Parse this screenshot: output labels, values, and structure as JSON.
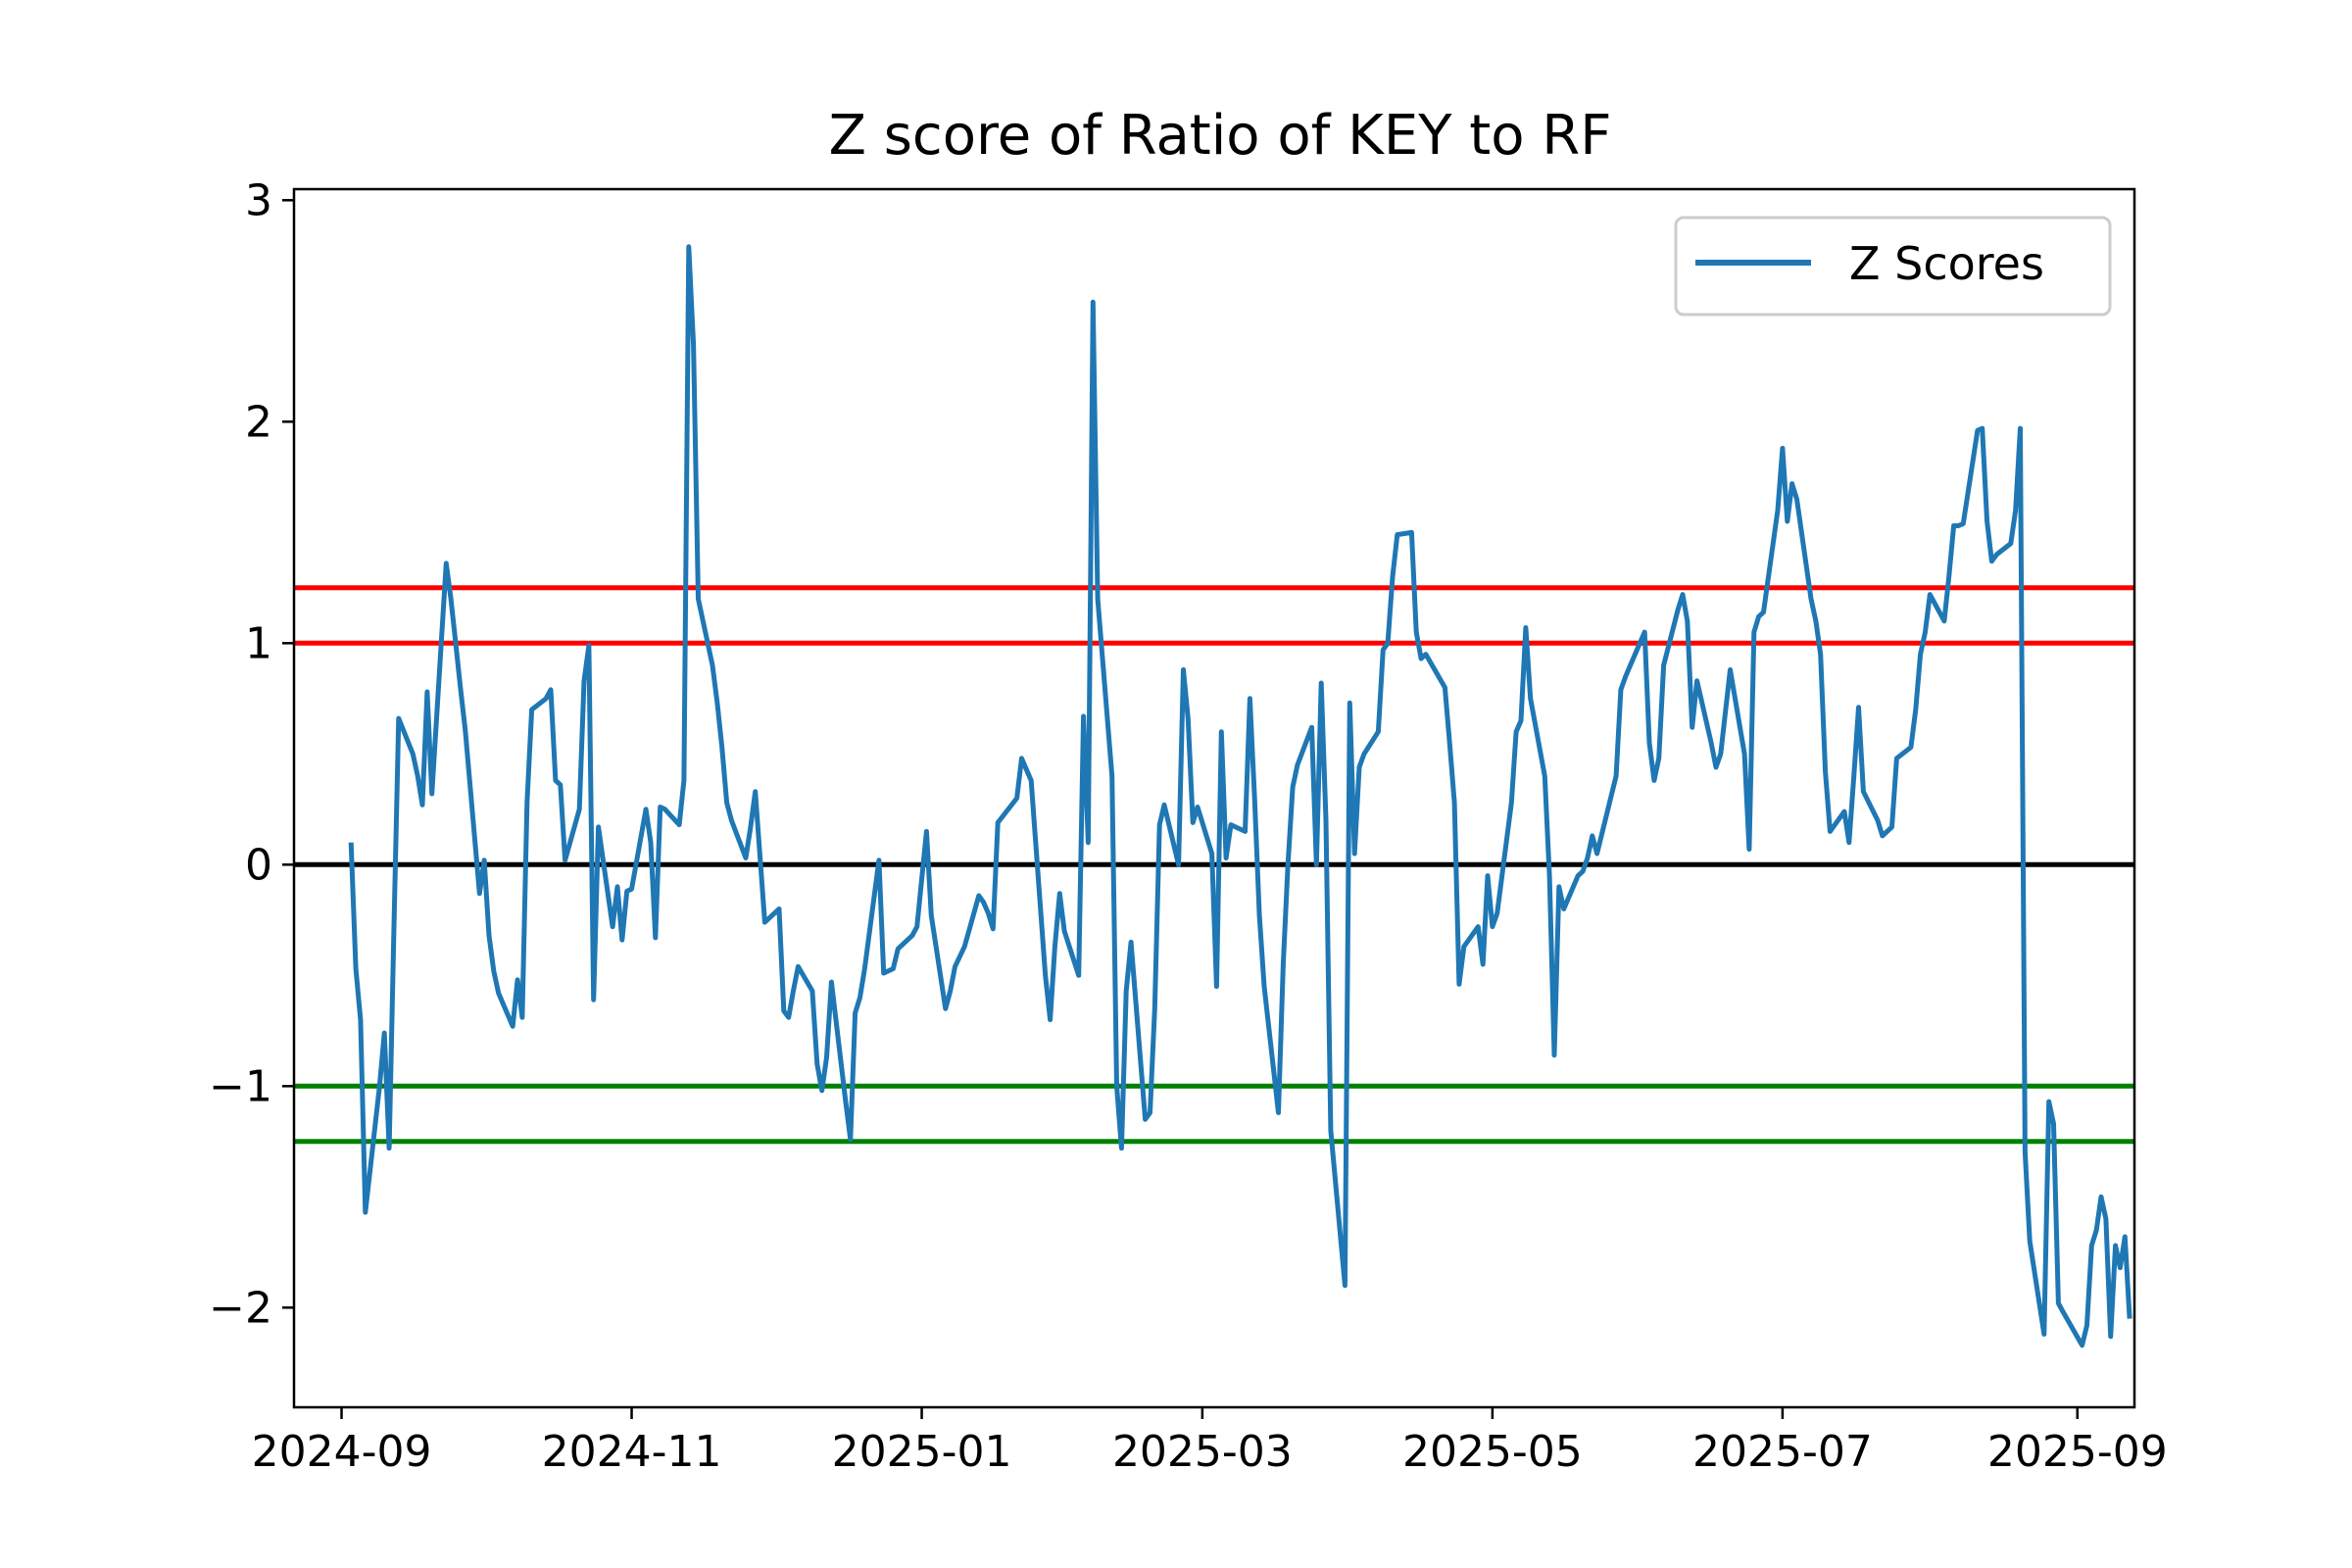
{
  "chart_data": {
    "type": "line",
    "title": "Z score of Ratio of KEY to RF",
    "xlabel": "",
    "ylabel": "",
    "xlim": [
      "2024-08-22",
      "2025-09-13"
    ],
    "ylim": [
      -2.45,
      3.05
    ],
    "x_ticks": [
      "2024-09-01",
      "2024-11-01",
      "2025-01-01",
      "2025-03-01",
      "2025-05-01",
      "2025-07-01",
      "2025-09-01"
    ],
    "x_tick_labels": [
      "2024-09",
      "2024-11",
      "2025-01",
      "2025-03",
      "2025-05",
      "2025-07",
      "2025-09"
    ],
    "y_ticks": [
      -2,
      -1,
      0,
      1,
      2,
      3
    ],
    "y_tick_labels": [
      "−2",
      "−1",
      "0",
      "1",
      "2",
      "3"
    ],
    "grid": false,
    "legend": {
      "position": "top-right",
      "entries": [
        "Z Scores"
      ]
    },
    "reference_lines": [
      {
        "y": 1.25,
        "color": "#ff0000"
      },
      {
        "y": 1.0,
        "color": "#ff0000"
      },
      {
        "y": 0,
        "color": "#000000"
      },
      {
        "y": -1.0,
        "color": "#008000"
      },
      {
        "y": -1.25,
        "color": "#008000"
      }
    ],
    "series": [
      {
        "name": "Z Scores",
        "color": "#1f77b4",
        "points": [
          [
            "2024-09-03",
            0.1
          ],
          [
            "2024-09-04",
            -0.47
          ],
          [
            "2024-09-05",
            -0.7
          ],
          [
            "2024-09-06",
            -1.57
          ],
          [
            "2024-09-09",
            -1.0
          ],
          [
            "2024-09-10",
            -0.76
          ],
          [
            "2024-09-11",
            -1.28
          ],
          [
            "2024-09-12",
            -0.3
          ],
          [
            "2024-09-13",
            0.66
          ],
          [
            "2024-09-16",
            0.5
          ],
          [
            "2024-09-17",
            0.4
          ],
          [
            "2024-09-18",
            0.27
          ],
          [
            "2024-09-19",
            0.78
          ],
          [
            "2024-09-20",
            0.32
          ],
          [
            "2024-09-23",
            1.36
          ],
          [
            "2024-09-24",
            1.2
          ],
          [
            "2024-09-25",
            1.0
          ],
          [
            "2024-09-26",
            0.8
          ],
          [
            "2024-09-27",
            0.61
          ],
          [
            "2024-09-30",
            -0.13
          ],
          [
            "2024-10-01",
            0.02
          ],
          [
            "2024-10-02",
            -0.32
          ],
          [
            "2024-10-03",
            -0.48
          ],
          [
            "2024-10-04",
            -0.58
          ],
          [
            "2024-10-07",
            -0.73
          ],
          [
            "2024-10-08",
            -0.52
          ],
          [
            "2024-10-09",
            -0.69
          ],
          [
            "2024-10-10",
            0.28
          ],
          [
            "2024-10-11",
            0.7
          ],
          [
            "2024-10-14",
            0.75
          ],
          [
            "2024-10-15",
            0.79
          ],
          [
            "2024-10-16",
            0.38
          ],
          [
            "2024-10-17",
            0.36
          ],
          [
            "2024-10-18",
            0.02
          ],
          [
            "2024-10-21",
            0.25
          ],
          [
            "2024-10-22",
            0.83
          ],
          [
            "2024-10-23",
            0.99
          ],
          [
            "2024-10-24",
            -0.61
          ],
          [
            "2024-10-25",
            0.17
          ],
          [
            "2024-10-28",
            -0.28
          ],
          [
            "2024-10-29",
            -0.1
          ],
          [
            "2024-10-30",
            -0.34
          ],
          [
            "2024-10-31",
            -0.12
          ],
          [
            "2024-11-01",
            -0.11
          ],
          [
            "2024-11-04",
            0.25
          ],
          [
            "2024-11-05",
            0.1
          ],
          [
            "2024-11-06",
            -0.33
          ],
          [
            "2024-11-07",
            0.26
          ],
          [
            "2024-11-08",
            0.25
          ],
          [
            "2024-11-11",
            0.18
          ],
          [
            "2024-11-12",
            0.38
          ],
          [
            "2024-11-13",
            2.79
          ],
          [
            "2024-11-14",
            2.35
          ],
          [
            "2024-11-15",
            1.2
          ],
          [
            "2024-11-18",
            0.9
          ],
          [
            "2024-11-19",
            0.73
          ],
          [
            "2024-11-20",
            0.53
          ],
          [
            "2024-11-21",
            0.28
          ],
          [
            "2024-11-22",
            0.2
          ],
          [
            "2024-11-25",
            0.03
          ],
          [
            "2024-11-26",
            0.17
          ],
          [
            "2024-11-27",
            0.33
          ],
          [
            "2024-11-29",
            -0.26
          ],
          [
            "2024-12-02",
            -0.2
          ],
          [
            "2024-12-03",
            -0.66
          ],
          [
            "2024-12-04",
            -0.69
          ],
          [
            "2024-12-05",
            -0.57
          ],
          [
            "2024-12-06",
            -0.46
          ],
          [
            "2024-12-09",
            -0.57
          ],
          [
            "2024-12-10",
            -0.9
          ],
          [
            "2024-12-11",
            -1.02
          ],
          [
            "2024-12-12",
            -0.87
          ],
          [
            "2024-12-13",
            -0.53
          ],
          [
            "2024-12-16",
            -1.07
          ],
          [
            "2024-12-17",
            -1.24
          ],
          [
            "2024-12-18",
            -0.67
          ],
          [
            "2024-12-19",
            -0.6
          ],
          [
            "2024-12-20",
            -0.47
          ],
          [
            "2024-12-23",
            0.02
          ],
          [
            "2024-12-24",
            -0.49
          ],
          [
            "2024-12-26",
            -0.47
          ],
          [
            "2024-12-27",
            -0.38
          ],
          [
            "2024-12-30",
            -0.32
          ],
          [
            "2024-12-31",
            -0.28
          ],
          [
            "2025-01-02",
            0.15
          ],
          [
            "2025-01-03",
            -0.23
          ],
          [
            "2025-01-06",
            -0.65
          ],
          [
            "2025-01-07",
            -0.57
          ],
          [
            "2025-01-08",
            -0.46
          ],
          [
            "2025-01-10",
            -0.37
          ],
          [
            "2025-01-13",
            -0.14
          ],
          [
            "2025-01-14",
            -0.17
          ],
          [
            "2025-01-15",
            -0.22
          ],
          [
            "2025-01-16",
            -0.29
          ],
          [
            "2025-01-17",
            0.19
          ],
          [
            "2025-01-21",
            0.3
          ],
          [
            "2025-01-22",
            0.48
          ],
          [
            "2025-01-23",
            0.43
          ],
          [
            "2025-01-24",
            0.38
          ],
          [
            "2025-01-27",
            -0.5
          ],
          [
            "2025-01-28",
            -0.7
          ],
          [
            "2025-01-29",
            -0.37
          ],
          [
            "2025-01-30",
            -0.13
          ],
          [
            "2025-01-31",
            -0.3
          ],
          [
            "2025-02-03",
            -0.5
          ],
          [
            "2025-02-04",
            0.67
          ],
          [
            "2025-02-05",
            0.1
          ],
          [
            "2025-02-06",
            2.54
          ],
          [
            "2025-02-07",
            1.2
          ],
          [
            "2025-02-10",
            0.4
          ],
          [
            "2025-02-11",
            -1.0
          ],
          [
            "2025-02-12",
            -1.28
          ],
          [
            "2025-02-13",
            -0.57
          ],
          [
            "2025-02-14",
            -0.35
          ],
          [
            "2025-02-17",
            -1.15
          ],
          [
            "2025-02-18",
            -1.12
          ],
          [
            "2025-02-19",
            -0.65
          ],
          [
            "2025-02-20",
            0.18
          ],
          [
            "2025-02-21",
            0.27
          ],
          [
            "2025-02-24",
            0.0
          ],
          [
            "2025-02-25",
            0.88
          ],
          [
            "2025-02-26",
            0.66
          ],
          [
            "2025-02-27",
            0.19
          ],
          [
            "2025-02-28",
            0.26
          ],
          [
            "2025-03-03",
            0.05
          ],
          [
            "2025-03-04",
            -0.55
          ],
          [
            "2025-03-05",
            0.6
          ],
          [
            "2025-03-06",
            0.03
          ],
          [
            "2025-03-07",
            0.18
          ],
          [
            "2025-03-10",
            0.15
          ],
          [
            "2025-03-11",
            0.75
          ],
          [
            "2025-03-12",
            0.3
          ],
          [
            "2025-03-13",
            -0.23
          ],
          [
            "2025-03-14",
            -0.55
          ],
          [
            "2025-03-17",
            -1.12
          ],
          [
            "2025-03-18",
            -0.45
          ],
          [
            "2025-03-19",
            0.0
          ],
          [
            "2025-03-20",
            0.35
          ],
          [
            "2025-03-21",
            0.45
          ],
          [
            "2025-03-24",
            0.62
          ],
          [
            "2025-03-25",
            0.0
          ],
          [
            "2025-03-26",
            0.82
          ],
          [
            "2025-03-27",
            0.2
          ],
          [
            "2025-03-28",
            -1.2
          ],
          [
            "2025-03-31",
            -1.9
          ],
          [
            "2025-04-01",
            0.73
          ],
          [
            "2025-04-02",
            0.05
          ],
          [
            "2025-04-03",
            0.44
          ],
          [
            "2025-04-04",
            0.5
          ],
          [
            "2025-04-07",
            0.6
          ],
          [
            "2025-04-08",
            0.97
          ],
          [
            "2025-04-09",
            1.0
          ],
          [
            "2025-04-10",
            1.3
          ],
          [
            "2025-04-11",
            1.49
          ],
          [
            "2025-04-14",
            1.5
          ],
          [
            "2025-04-15",
            1.05
          ],
          [
            "2025-04-16",
            0.93
          ],
          [
            "2025-04-17",
            0.95
          ],
          [
            "2025-04-21",
            0.8
          ],
          [
            "2025-04-22",
            0.55
          ],
          [
            "2025-04-23",
            0.28
          ],
          [
            "2025-04-24",
            -0.54
          ],
          [
            "2025-04-25",
            -0.37
          ],
          [
            "2025-04-28",
            -0.28
          ],
          [
            "2025-04-29",
            -0.45
          ],
          [
            "2025-04-30",
            -0.05
          ],
          [
            "2025-05-01",
            -0.28
          ],
          [
            "2025-05-02",
            -0.22
          ],
          [
            "2025-05-05",
            0.28
          ],
          [
            "2025-05-06",
            0.6
          ],
          [
            "2025-05-07",
            0.65
          ],
          [
            "2025-05-08",
            1.07
          ],
          [
            "2025-05-09",
            0.75
          ],
          [
            "2025-05-12",
            0.4
          ],
          [
            "2025-05-13",
            -0.05
          ],
          [
            "2025-05-14",
            -0.86
          ],
          [
            "2025-05-15",
            -0.1
          ],
          [
            "2025-05-16",
            -0.2
          ],
          [
            "2025-05-19",
            -0.05
          ],
          [
            "2025-05-20",
            -0.03
          ],
          [
            "2025-05-21",
            0.03
          ],
          [
            "2025-05-22",
            0.13
          ],
          [
            "2025-05-23",
            0.05
          ],
          [
            "2025-05-27",
            0.4
          ],
          [
            "2025-05-28",
            0.79
          ],
          [
            "2025-05-29",
            0.85
          ],
          [
            "2025-05-30",
            0.9
          ],
          [
            "2025-06-02",
            1.05
          ],
          [
            "2025-06-03",
            0.55
          ],
          [
            "2025-06-04",
            0.38
          ],
          [
            "2025-06-05",
            0.48
          ],
          [
            "2025-06-06",
            0.9
          ],
          [
            "2025-06-09",
            1.15
          ],
          [
            "2025-06-10",
            1.22
          ],
          [
            "2025-06-11",
            1.1
          ],
          [
            "2025-06-12",
            0.62
          ],
          [
            "2025-06-13",
            0.83
          ],
          [
            "2025-06-16",
            0.55
          ],
          [
            "2025-06-17",
            0.44
          ],
          [
            "2025-06-18",
            0.5
          ],
          [
            "2025-06-20",
            0.88
          ],
          [
            "2025-06-23",
            0.5
          ],
          [
            "2025-06-24",
            0.07
          ],
          [
            "2025-06-25",
            1.05
          ],
          [
            "2025-06-26",
            1.12
          ],
          [
            "2025-06-27",
            1.14
          ],
          [
            "2025-06-30",
            1.6
          ],
          [
            "2025-07-01",
            1.88
          ],
          [
            "2025-07-02",
            1.55
          ],
          [
            "2025-07-03",
            1.72
          ],
          [
            "2025-07-04",
            1.65
          ],
          [
            "2025-07-07",
            1.2
          ],
          [
            "2025-07-08",
            1.1
          ],
          [
            "2025-07-09",
            0.95
          ],
          [
            "2025-07-10",
            0.42
          ],
          [
            "2025-07-11",
            0.15
          ],
          [
            "2025-07-14",
            0.24
          ],
          [
            "2025-07-15",
            0.1
          ],
          [
            "2025-07-16",
            0.4
          ],
          [
            "2025-07-17",
            0.71
          ],
          [
            "2025-07-18",
            0.33
          ],
          [
            "2025-07-21",
            0.2
          ],
          [
            "2025-07-22",
            0.13
          ],
          [
            "2025-07-23",
            0.15
          ],
          [
            "2025-07-24",
            0.17
          ],
          [
            "2025-07-25",
            0.48
          ],
          [
            "2025-07-28",
            0.53
          ],
          [
            "2025-07-29",
            0.7
          ],
          [
            "2025-07-30",
            0.95
          ],
          [
            "2025-07-31",
            1.05
          ],
          [
            "2025-08-01",
            1.22
          ],
          [
            "2025-08-04",
            1.1
          ],
          [
            "2025-08-05",
            1.3
          ],
          [
            "2025-08-06",
            1.53
          ],
          [
            "2025-08-07",
            1.53
          ],
          [
            "2025-08-08",
            1.54
          ],
          [
            "2025-08-11",
            1.96
          ],
          [
            "2025-08-12",
            1.97
          ],
          [
            "2025-08-13",
            1.55
          ],
          [
            "2025-08-14",
            1.37
          ],
          [
            "2025-08-15",
            1.4
          ],
          [
            "2025-08-18",
            1.45
          ],
          [
            "2025-08-19",
            1.6
          ],
          [
            "2025-08-20",
            1.97
          ],
          [
            "2025-08-21",
            -1.3
          ],
          [
            "2025-08-22",
            -1.7
          ],
          [
            "2025-08-25",
            -2.12
          ],
          [
            "2025-08-26",
            -1.07
          ],
          [
            "2025-08-27",
            -1.17
          ],
          [
            "2025-08-28",
            -1.98
          ],
          [
            "2025-08-29",
            -2.02
          ],
          [
            "2025-09-02",
            -2.17
          ],
          [
            "2025-09-03",
            -2.08
          ],
          [
            "2025-09-04",
            -1.72
          ],
          [
            "2025-09-05",
            -1.65
          ],
          [
            "2025-09-06",
            -1.5
          ],
          [
            "2025-09-07",
            -1.6
          ],
          [
            "2025-09-08",
            -2.13
          ],
          [
            "2025-09-09",
            -1.72
          ],
          [
            "2025-09-10",
            -1.82
          ],
          [
            "2025-09-11",
            -1.68
          ],
          [
            "2025-09-12",
            -2.05
          ]
        ]
      }
    ]
  }
}
